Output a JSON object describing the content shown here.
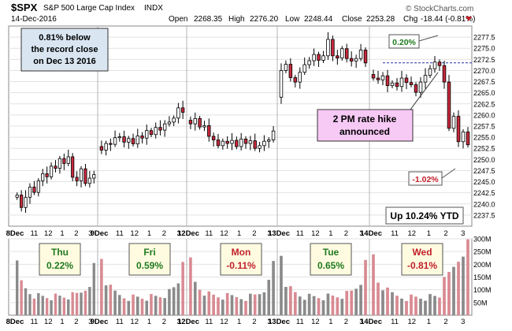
{
  "header": {
    "ticker": "$SPX",
    "name": "S&P 500 Large Cap Index",
    "exchange": "INDX",
    "date": "14-Dec-2016",
    "ohlc": [
      {
        "label": "Open",
        "value": "2268.35"
      },
      {
        "label": "High",
        "value": "2276.20"
      },
      {
        "label": "Low",
        "value": "2248.44"
      },
      {
        "label": "Close",
        "value": "2253.28"
      }
    ],
    "chg_label": "Chg",
    "chg_value": "-18.44 (-0.81%)",
    "source": "© StockCharts.com"
  },
  "annotations": {
    "record_box": [
      "0.81% below",
      "the record close",
      "on Dec 13 2016"
    ],
    "gain_label": "0.20%",
    "fed_box": [
      "2 PM rate hike",
      "announced"
    ],
    "loss_label": "-1.02%",
    "ytd_label": "Up 10.24% YTD"
  },
  "days": [
    {
      "name": "Thu",
      "change": "0.22%",
      "color": "#1f7a1f"
    },
    {
      "name": "Fri",
      "change": "0.59%",
      "color": "#1f7a1f"
    },
    {
      "name": "Mon",
      "change": "-0.11%",
      "color": "#c0202a"
    },
    {
      "name": "Tue",
      "change": "0.65%",
      "color": "#1f7a1f"
    },
    {
      "name": "Wed",
      "change": "-0.81%",
      "color": "#c0202a"
    }
  ],
  "colors": {
    "up": "#ffffff",
    "down": "#c8283c",
    "ref_line": "#2233aa",
    "vol_up": "#8a8a8a",
    "vol_down": "#d98a92"
  },
  "chart_data": {
    "type": "candlestick",
    "price_axis": {
      "min": 2235,
      "max": 2280,
      "ticks": [
        "2277.5",
        "2275.0",
        "2272.5",
        "2270.0",
        "2267.5",
        "2265.0",
        "2262.5",
        "2260.0",
        "2257.5",
        "2255.0",
        "2252.5",
        "2250.0",
        "2247.5",
        "2245.0",
        "2242.5",
        "2240.0",
        "2237.5"
      ]
    },
    "volume_axis": {
      "max": 300,
      "ticks": [
        "300M",
        "250M",
        "200M",
        "150M",
        "100M",
        "50M"
      ]
    },
    "reference_level": 2271.72,
    "x_labels": [
      "8Dec",
      "11",
      "12",
      "1",
      "2",
      "3",
      "9Dec",
      "11",
      "12",
      "1",
      "2",
      "3",
      "12Dec",
      "11",
      "12",
      "1",
      "2",
      "3",
      "13Dec",
      "11",
      "12",
      "1",
      "2",
      "3",
      "14Dec",
      "11",
      "12",
      "1",
      "2",
      "3"
    ],
    "segments": [
      {
        "label": "8Dec",
        "closes": [
          2242.0,
          2239.2,
          2241.5,
          2243.8,
          2242.6,
          2245.2,
          2246.8,
          2246.1,
          2248.5,
          2248.0,
          2250.2,
          2249.1,
          2250.6,
          2246.0,
          2245.2,
          2247.9,
          2244.6,
          2245.8,
          2246.6
        ]
      },
      {
        "label": "9Dec",
        "closes": [
          2252.1,
          2253.6,
          2253.4,
          2254.9,
          2255.1,
          2253.9,
          2254.7,
          2253.5,
          2255.3,
          2254.8,
          2256.5,
          2255.6,
          2257.2,
          2256.6,
          2258.0,
          2258.4,
          2259.3,
          2261.6,
          2260.6
        ]
      },
      {
        "label": "12Dec",
        "closes": [
          2258.0,
          2259.2,
          2257.3,
          2257.6,
          2255.2,
          2254.4,
          2253.1,
          2254.1,
          2253.6,
          2254.3,
          2252.9,
          2254.6,
          2253.6,
          2254.2,
          2252.5,
          2253.1,
          2254.1,
          2254.4,
          2256.4
        ]
      },
      {
        "label": "13Dec",
        "closes": [
          2270.0,
          2271.4,
          2268.4,
          2267.4,
          2269.6,
          2271.3,
          2272.2,
          2273.6,
          2272.3,
          2273.3,
          2277.0,
          2273.3,
          2272.8,
          2274.9,
          2272.7,
          2272.1,
          2272.7,
          2274.6,
          2271.7
        ]
      },
      {
        "label": "14Dec",
        "closes": [
          2268.3,
          2267.9,
          2268.8,
          2266.6,
          2267.2,
          2266.4,
          2268.3,
          2267.3,
          2266.8,
          2265.1,
          2267.4,
          2268.9,
          2270.4,
          2271.9,
          2271.1,
          2267.4,
          2257.0,
          2259.7,
          2254.0,
          2256.2,
          2253.3
        ]
      }
    ]
  }
}
